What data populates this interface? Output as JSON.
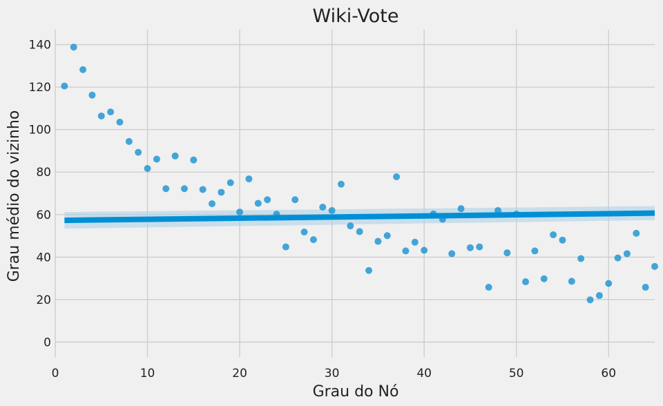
{
  "chart_data": {
    "type": "scatter",
    "title": "Wiki-Vote",
    "xlabel": "Grau do Nó",
    "ylabel": "Grau médio do vizinho",
    "xlim": [
      0,
      65
    ],
    "ylim": [
      -7,
      147
    ],
    "xticks": [
      0,
      10,
      20,
      30,
      40,
      50,
      60
    ],
    "yticks": [
      0,
      20,
      40,
      60,
      80,
      100,
      120,
      140
    ],
    "grid": true,
    "legend": "none",
    "colors": {
      "points": "#2596d4",
      "line": "#008fd5",
      "band": "#a9cfe6",
      "background": "#f0f0f0"
    },
    "series": [
      {
        "values": {
          "x": [
            1,
            2,
            3,
            4,
            5,
            6,
            7,
            8,
            9,
            10,
            11,
            12,
            13,
            14,
            15,
            16,
            17,
            18,
            19,
            20,
            21,
            22,
            23,
            24,
            25,
            26,
            27,
            28,
            29,
            30,
            31,
            32,
            33,
            34,
            35,
            36,
            37,
            38,
            39,
            40,
            41,
            42,
            43,
            44,
            45,
            46,
            47,
            48,
            49,
            50,
            51,
            52,
            53,
            54,
            55,
            56,
            57,
            58,
            59,
            60,
            61,
            62,
            63,
            64,
            65
          ],
          "y": [
            120.5,
            138.8,
            128.2,
            116.2,
            106.4,
            108.3,
            103.5,
            94.4,
            89.3,
            81.7,
            86.1,
            72.2,
            87.6,
            72.2,
            85.7,
            71.8,
            65.1,
            70.5,
            75.0,
            61.2,
            76.8,
            65.3,
            67.0,
            60.2,
            44.8,
            67.0,
            51.8,
            48.2,
            63.5,
            61.9,
            74.3,
            54.7,
            52.0,
            33.7,
            47.4,
            50.1,
            77.8,
            42.9,
            47.0,
            43.2,
            60.3,
            57.8,
            41.6,
            62.8,
            44.4,
            44.8,
            25.8,
            61.9,
            42.0,
            60.2,
            28.4,
            42.9,
            29.8,
            50.5,
            48.0,
            28.6,
            39.3,
            19.9,
            21.9,
            27.6,
            39.6,
            41.6,
            51.2,
            25.8,
            35.6
          ]
        }
      }
    ],
    "regression": {
      "x": [
        1,
        65
      ],
      "y": [
        57.3,
        60.7
      ],
      "ci_lower": [
        53.4,
        57.4
      ],
      "ci_upper": [
        61.2,
        64.0
      ]
    }
  }
}
